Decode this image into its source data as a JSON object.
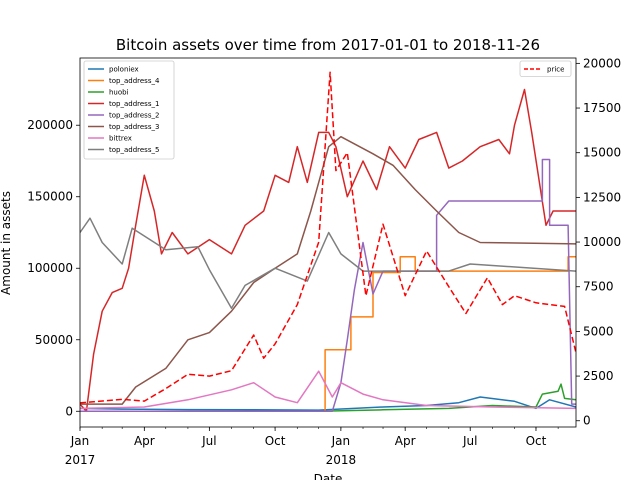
{
  "chart_data": {
    "type": "line",
    "title": "Bitcoin assets over time from 2017-01-01 to 2018-11-26",
    "xlabel": "Date",
    "ylabel": "Amount in assets",
    "xlim": [
      "2017-01-01",
      "2018-11-26"
    ],
    "ylim_left": [
      -11000,
      247000
    ],
    "ylim_right": [
      -350,
      20300
    ],
    "x_ticks": [
      {
        "date": "2017-01-01",
        "label": "Jan"
      },
      {
        "date": "2017-04-01",
        "label": "Apr"
      },
      {
        "date": "2017-07-01",
        "label": "Jul"
      },
      {
        "date": "2017-10-01",
        "label": "Oct"
      },
      {
        "date": "2018-01-01",
        "label": "Jan"
      },
      {
        "date": "2018-04-01",
        "label": "Apr"
      },
      {
        "date": "2018-07-01",
        "label": "Jul"
      },
      {
        "date": "2018-10-01",
        "label": "Oct"
      }
    ],
    "x_year_labels": [
      {
        "date": "2017-01-01",
        "label": "2017"
      },
      {
        "date": "2018-01-01",
        "label": "2018"
      }
    ],
    "y_ticks_left": [
      0,
      50000,
      100000,
      150000,
      200000
    ],
    "y_ticks_right": [
      0,
      2500,
      5000,
      7500,
      10000,
      12500,
      15000,
      17500,
      20000
    ],
    "legend_left": "top-left",
    "legend_right": "top-right",
    "grid": false,
    "series": [
      {
        "name": "poloniex",
        "axis": "left",
        "color": "#1f77b4",
        "style": "solid",
        "points": [
          [
            "2017-01-01",
            2000
          ],
          [
            "2017-03-01",
            1500
          ],
          [
            "2017-06-01",
            1200
          ],
          [
            "2017-09-01",
            1000
          ],
          [
            "2017-12-01",
            800
          ],
          [
            "2018-03-01",
            3000
          ],
          [
            "2018-05-01",
            4000
          ],
          [
            "2018-06-15",
            6000
          ],
          [
            "2018-07-15",
            10000
          ],
          [
            "2018-09-01",
            7000
          ],
          [
            "2018-10-01",
            2000
          ],
          [
            "2018-10-20",
            8000
          ],
          [
            "2018-11-26",
            3000
          ]
        ]
      },
      {
        "name": "top_address_4",
        "axis": "left",
        "color": "#ff7f0e",
        "style": "solid",
        "points": [
          [
            "2017-01-01",
            0
          ],
          [
            "2017-12-10",
            0
          ],
          [
            "2017-12-10",
            43000
          ],
          [
            "2018-01-15",
            43000
          ],
          [
            "2018-01-15",
            66000
          ],
          [
            "2018-02-15",
            66000
          ],
          [
            "2018-02-15",
            97000
          ],
          [
            "2018-03-25",
            97000
          ],
          [
            "2018-03-25",
            108000
          ],
          [
            "2018-04-15",
            108000
          ],
          [
            "2018-04-15",
            98000
          ],
          [
            "2018-11-15",
            98000
          ],
          [
            "2018-11-15",
            108000
          ],
          [
            "2018-11-26",
            108000
          ]
        ]
      },
      {
        "name": "huobi",
        "axis": "left",
        "color": "#2ca02c",
        "style": "solid",
        "points": [
          [
            "2017-01-01",
            0
          ],
          [
            "2017-12-01",
            0
          ],
          [
            "2018-03-01",
            1000
          ],
          [
            "2018-06-01",
            2000
          ],
          [
            "2018-08-01",
            4000
          ],
          [
            "2018-10-01",
            3000
          ],
          [
            "2018-10-10",
            12000
          ],
          [
            "2018-11-01",
            14000
          ],
          [
            "2018-11-05",
            19000
          ],
          [
            "2018-11-10",
            9000
          ],
          [
            "2018-11-26",
            8000
          ]
        ]
      },
      {
        "name": "top_address_1",
        "axis": "left",
        "color": "#d62728",
        "style": "solid",
        "points": [
          [
            "2017-01-01",
            5000
          ],
          [
            "2017-01-10",
            0
          ],
          [
            "2017-01-20",
            40000
          ],
          [
            "2017-02-01",
            70000
          ],
          [
            "2017-02-15",
            83000
          ],
          [
            "2017-03-01",
            86000
          ],
          [
            "2017-03-10",
            100000
          ],
          [
            "2017-03-20",
            130000
          ],
          [
            "2017-04-01",
            165000
          ],
          [
            "2017-04-15",
            140000
          ],
          [
            "2017-04-25",
            110000
          ],
          [
            "2017-05-10",
            125000
          ],
          [
            "2017-06-01",
            110000
          ],
          [
            "2017-07-01",
            120000
          ],
          [
            "2017-08-01",
            110000
          ],
          [
            "2017-08-20",
            130000
          ],
          [
            "2017-09-15",
            140000
          ],
          [
            "2017-10-01",
            165000
          ],
          [
            "2017-10-20",
            160000
          ],
          [
            "2017-11-01",
            185000
          ],
          [
            "2017-11-15",
            160000
          ],
          [
            "2017-12-01",
            195000
          ],
          [
            "2017-12-15",
            195000
          ],
          [
            "2017-12-25",
            185000
          ],
          [
            "2018-01-10",
            150000
          ],
          [
            "2018-02-01",
            175000
          ],
          [
            "2018-02-20",
            155000
          ],
          [
            "2018-03-10",
            185000
          ],
          [
            "2018-04-01",
            170000
          ],
          [
            "2018-04-20",
            190000
          ],
          [
            "2018-05-15",
            195000
          ],
          [
            "2018-06-01",
            170000
          ],
          [
            "2018-06-20",
            175000
          ],
          [
            "2018-07-15",
            185000
          ],
          [
            "2018-08-10",
            190000
          ],
          [
            "2018-08-25",
            180000
          ],
          [
            "2018-09-01",
            200000
          ],
          [
            "2018-09-15",
            225000
          ],
          [
            "2018-09-25",
            195000
          ],
          [
            "2018-10-15",
            130000
          ],
          [
            "2018-10-25",
            140000
          ],
          [
            "2018-11-26",
            140000
          ]
        ]
      },
      {
        "name": "top_address_2",
        "axis": "left",
        "color": "#9467bd",
        "style": "solid",
        "points": [
          [
            "2017-01-01",
            0
          ],
          [
            "2017-12-20",
            0
          ],
          [
            "2018-01-01",
            20000
          ],
          [
            "2018-01-10",
            50000
          ],
          [
            "2018-01-20",
            85000
          ],
          [
            "2018-02-01",
            118000
          ],
          [
            "2018-02-15",
            82000
          ],
          [
            "2018-03-01",
            98000
          ],
          [
            "2018-05-15",
            98000
          ],
          [
            "2018-05-15",
            137000
          ],
          [
            "2018-06-01",
            147000
          ],
          [
            "2018-10-10",
            147000
          ],
          [
            "2018-10-10",
            176000
          ],
          [
            "2018-10-20",
            176000
          ],
          [
            "2018-10-20",
            130000
          ],
          [
            "2018-11-15",
            130000
          ],
          [
            "2018-11-20",
            5000
          ],
          [
            "2018-11-26",
            5000
          ]
        ]
      },
      {
        "name": "top_address_3",
        "axis": "left",
        "color": "#8c564b",
        "style": "solid",
        "points": [
          [
            "2017-01-01",
            5000
          ],
          [
            "2017-03-01",
            5000
          ],
          [
            "2017-03-20",
            17000
          ],
          [
            "2017-05-01",
            30000
          ],
          [
            "2017-06-01",
            50000
          ],
          [
            "2017-07-01",
            55000
          ],
          [
            "2017-08-01",
            70000
          ],
          [
            "2017-09-01",
            90000
          ],
          [
            "2017-10-01",
            100000
          ],
          [
            "2017-11-01",
            110000
          ],
          [
            "2017-11-20",
            140000
          ],
          [
            "2017-12-01",
            160000
          ],
          [
            "2017-12-15",
            185000
          ],
          [
            "2018-01-01",
            192000
          ],
          [
            "2018-02-15",
            180000
          ],
          [
            "2018-03-15",
            172000
          ],
          [
            "2018-04-15",
            155000
          ],
          [
            "2018-05-15",
            140000
          ],
          [
            "2018-06-15",
            125000
          ],
          [
            "2018-07-15",
            118000
          ],
          [
            "2018-11-26",
            117000
          ]
        ]
      },
      {
        "name": "bittrex",
        "axis": "left",
        "color": "#e377c2",
        "style": "solid",
        "points": [
          [
            "2017-01-01",
            2000
          ],
          [
            "2017-04-01",
            3000
          ],
          [
            "2017-06-01",
            8000
          ],
          [
            "2017-08-01",
            15000
          ],
          [
            "2017-09-01",
            20000
          ],
          [
            "2017-10-01",
            10000
          ],
          [
            "2017-11-01",
            6000
          ],
          [
            "2017-12-01",
            28000
          ],
          [
            "2017-12-20",
            10000
          ],
          [
            "2018-01-01",
            20000
          ],
          [
            "2018-02-01",
            12000
          ],
          [
            "2018-03-01",
            8000
          ],
          [
            "2018-05-01",
            4000
          ],
          [
            "2018-08-01",
            3000
          ],
          [
            "2018-11-26",
            2000
          ]
        ]
      },
      {
        "name": "top_address_5",
        "axis": "left",
        "color": "#7f7f7f",
        "style": "solid",
        "points": [
          [
            "2017-01-01",
            125000
          ],
          [
            "2017-01-15",
            135000
          ],
          [
            "2017-02-01",
            118000
          ],
          [
            "2017-03-01",
            103000
          ],
          [
            "2017-03-15",
            128000
          ],
          [
            "2017-05-01",
            113000
          ],
          [
            "2017-06-15",
            115000
          ],
          [
            "2017-07-01",
            99000
          ],
          [
            "2017-08-01",
            72000
          ],
          [
            "2017-08-20",
            88000
          ],
          [
            "2017-10-01",
            100000
          ],
          [
            "2017-11-15",
            91000
          ],
          [
            "2017-12-15",
            125000
          ],
          [
            "2018-01-01",
            110000
          ],
          [
            "2018-02-01",
            98000
          ],
          [
            "2018-06-01",
            98000
          ],
          [
            "2018-07-01",
            103000
          ],
          [
            "2018-11-26",
            98000
          ]
        ]
      },
      {
        "name": "price",
        "axis": "right",
        "color": "#ff0000",
        "style": "dashed",
        "points": [
          [
            "2017-01-01",
            1000
          ],
          [
            "2017-03-01",
            1200
          ],
          [
            "2017-04-01",
            1100
          ],
          [
            "2017-05-01",
            1800
          ],
          [
            "2017-06-01",
            2600
          ],
          [
            "2017-07-01",
            2500
          ],
          [
            "2017-08-01",
            2800
          ],
          [
            "2017-09-01",
            4800
          ],
          [
            "2017-09-15",
            3500
          ],
          [
            "2017-10-01",
            4300
          ],
          [
            "2017-11-01",
            6500
          ],
          [
            "2017-12-01",
            10000
          ],
          [
            "2017-12-17",
            19500
          ],
          [
            "2017-12-25",
            14000
          ],
          [
            "2018-01-10",
            15000
          ],
          [
            "2018-02-05",
            7000
          ],
          [
            "2018-03-01",
            11000
          ],
          [
            "2018-04-01",
            7000
          ],
          [
            "2018-05-01",
            9500
          ],
          [
            "2018-06-01",
            7500
          ],
          [
            "2018-06-25",
            6000
          ],
          [
            "2018-07-25",
            8000
          ],
          [
            "2018-08-15",
            6500
          ],
          [
            "2018-09-01",
            7000
          ],
          [
            "2018-10-01",
            6600
          ],
          [
            "2018-11-10",
            6400
          ],
          [
            "2018-11-26",
            3800
          ]
        ]
      }
    ]
  }
}
